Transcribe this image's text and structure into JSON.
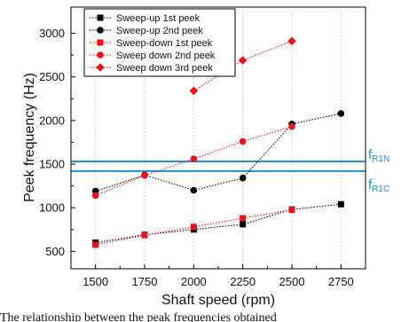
{
  "chart_data": {
    "type": "line",
    "xlabel": "Shaft speed (rpm)",
    "ylabel": "Peek frequency (Hz)",
    "xlim": [
      1375,
      2875
    ],
    "ylim": [
      300,
      3300
    ],
    "x_ticks": [
      1500,
      1750,
      2000,
      2250,
      2500,
      2750
    ],
    "y_ticks": [
      500,
      1000,
      1500,
      2000,
      2500,
      3000
    ],
    "grid": "vertical-dotted",
    "legend_position": "top-left",
    "series": [
      {
        "name": "Sweep-up 1st peek",
        "color": "#000000",
        "marker": "square",
        "x": [
          1500,
          1750,
          2000,
          2250,
          2500,
          2750
        ],
        "y": [
          600,
          690,
          750,
          810,
          980,
          1040
        ]
      },
      {
        "name": "Sweep-up 2nd peek",
        "color": "#000000",
        "marker": "circle",
        "x": [
          1500,
          1750,
          2000,
          2250,
          2500,
          2750
        ],
        "y": [
          1190,
          1375,
          1200,
          1340,
          1960,
          2080
        ]
      },
      {
        "name": "Sweep-down 1st peek",
        "color": "#e8141b",
        "marker": "square",
        "x": [
          1500,
          1750,
          2000,
          2250,
          2500
        ],
        "y": [
          575,
          685,
          780,
          880,
          975
        ]
      },
      {
        "name": "Sweep down 2nd peek",
        "color": "#e8141b",
        "marker": "circle",
        "x": [
          1500,
          1750,
          2000,
          2250,
          2500
        ],
        "y": [
          1140,
          1370,
          1560,
          1760,
          1930
        ]
      },
      {
        "name": "Sweep down 3rd peek",
        "color": "#e8141b",
        "marker": "diamond",
        "x": [
          2000,
          2250,
          2500
        ],
        "y": [
          2340,
          2690,
          2910
        ]
      }
    ],
    "reference_lines": [
      {
        "y": 1530,
        "label_main": "f",
        "label_sub": "R1N",
        "color": "#1e90d6"
      },
      {
        "y": 1420,
        "label_main": "f",
        "label_sub": "R1C",
        "color": "#1e90d6"
      }
    ]
  },
  "caption": "The relationship between the peak frequencies obtained"
}
